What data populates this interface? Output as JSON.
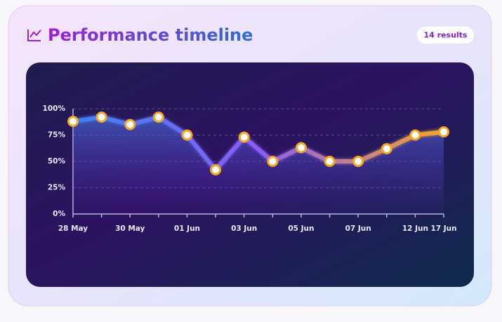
{
  "header": {
    "title": "Performance timeline",
    "badge": "14 results"
  },
  "chart_data": {
    "type": "line",
    "categories": [
      "28 May",
      null,
      "30 May",
      null,
      "01 Jun",
      null,
      "03 Jun",
      null,
      "05 Jun",
      null,
      "07 Jun",
      null,
      "12 Jun",
      "17 Jun"
    ],
    "series": [
      {
        "values": [
          88,
          92,
          85,
          92,
          75,
          42,
          73,
          50,
          63,
          50,
          50,
          62,
          75,
          78
        ],
        "color": [
          "#3b82f6",
          "#8b5cf6",
          "#f5a623"
        ]
      }
    ],
    "marker_color": "#f5a623",
    "ylim": [
      0,
      100
    ],
    "yticks": [
      {
        "value": 0,
        "label": "0%"
      },
      {
        "value": 25,
        "label": "25%"
      },
      {
        "value": 50,
        "label": "50%"
      },
      {
        "value": 75,
        "label": "75%"
      },
      {
        "value": 100,
        "label": "100%"
      }
    ],
    "grid": true,
    "area": true
  }
}
